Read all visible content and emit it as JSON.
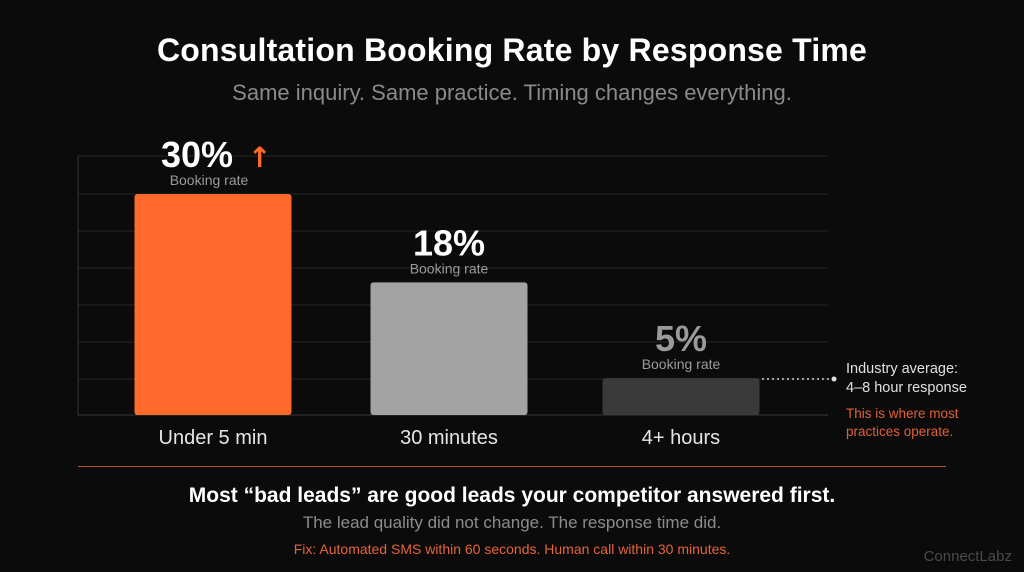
{
  "header": {
    "title": "Consultation Booking Rate by Response Time",
    "subtitle": "Same inquiry. Same practice. Timing changes everything."
  },
  "chart_data": {
    "type": "bar",
    "title": "Consultation Booking Rate by Response Time",
    "subtitle": "Same inquiry. Same practice. Timing changes everything.",
    "categories": [
      "Under 5 min",
      "30 minutes",
      "4+ hours"
    ],
    "values": [
      30,
      18,
      5
    ],
    "value_labels": [
      "30%",
      "18%",
      "5%"
    ],
    "value_sublabel": "Booking rate",
    "ylim": [
      0,
      30
    ],
    "unit": "%",
    "grid": true,
    "colors": [
      "#ff6a2b",
      "#a3a3a3",
      "#3a3a3a"
    ],
    "label_colors": [
      "#ffffff",
      "#ffffff",
      "#9a9a9a"
    ],
    "highlight_arrow": "↑",
    "highlight_arrow_color": "#ff6a2b"
  },
  "annotation": {
    "line1": "Industry average:",
    "line2": "4–8 hour response",
    "note1": "This is where most",
    "note2": "practices operate."
  },
  "footer": {
    "takeaway": "Most “bad leads” are good leads your competitor answered first.",
    "sub": "The lead quality did not change. The response time did.",
    "fix": "Fix: Automated SMS within 60 seconds. Human call within 30 minutes.",
    "brand": "ConnectLabz"
  },
  "colors": {
    "background": "#0b0b0b",
    "accent": "#ff6a2b",
    "divider": "#b5532b"
  }
}
